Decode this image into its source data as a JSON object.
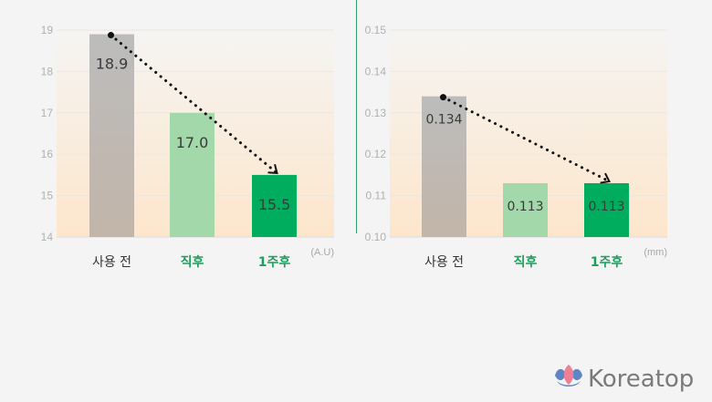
{
  "chart_data": [
    {
      "type": "bar",
      "categories": [
        "사용 전",
        "직후",
        "1주후"
      ],
      "values": [
        18.9,
        17.0,
        15.5
      ],
      "data_labels": [
        "18.9",
        "17.0",
        "15.5"
      ],
      "unit": "(A.U)",
      "ylim": [
        14,
        19
      ],
      "yticks": [
        "14",
        "15",
        "16",
        "17",
        "18",
        "19"
      ],
      "grid": true,
      "trend_arrow": true
    },
    {
      "type": "bar",
      "categories": [
        "사용 전",
        "직후",
        "1주후"
      ],
      "values": [
        0.134,
        0.113,
        0.113
      ],
      "data_labels": [
        "0.134",
        "0.113",
        "0.113"
      ],
      "unit": "(mm)",
      "ylim": [
        0.1,
        0.15
      ],
      "yticks": [
        "0.10",
        "0.11",
        "0.12",
        "0.13",
        "0.14",
        "0.15"
      ],
      "grid": true,
      "trend_arrow": true
    }
  ],
  "colors": {
    "bar_before": "#bbb5af",
    "bar_after": "#a2d8aa",
    "bar_week": "#00ad5f",
    "category_accent": "#1c9e5c",
    "divider": "#2f9e62"
  },
  "logo": {
    "text": "Koreatop",
    "icon": "lotus-icon"
  }
}
